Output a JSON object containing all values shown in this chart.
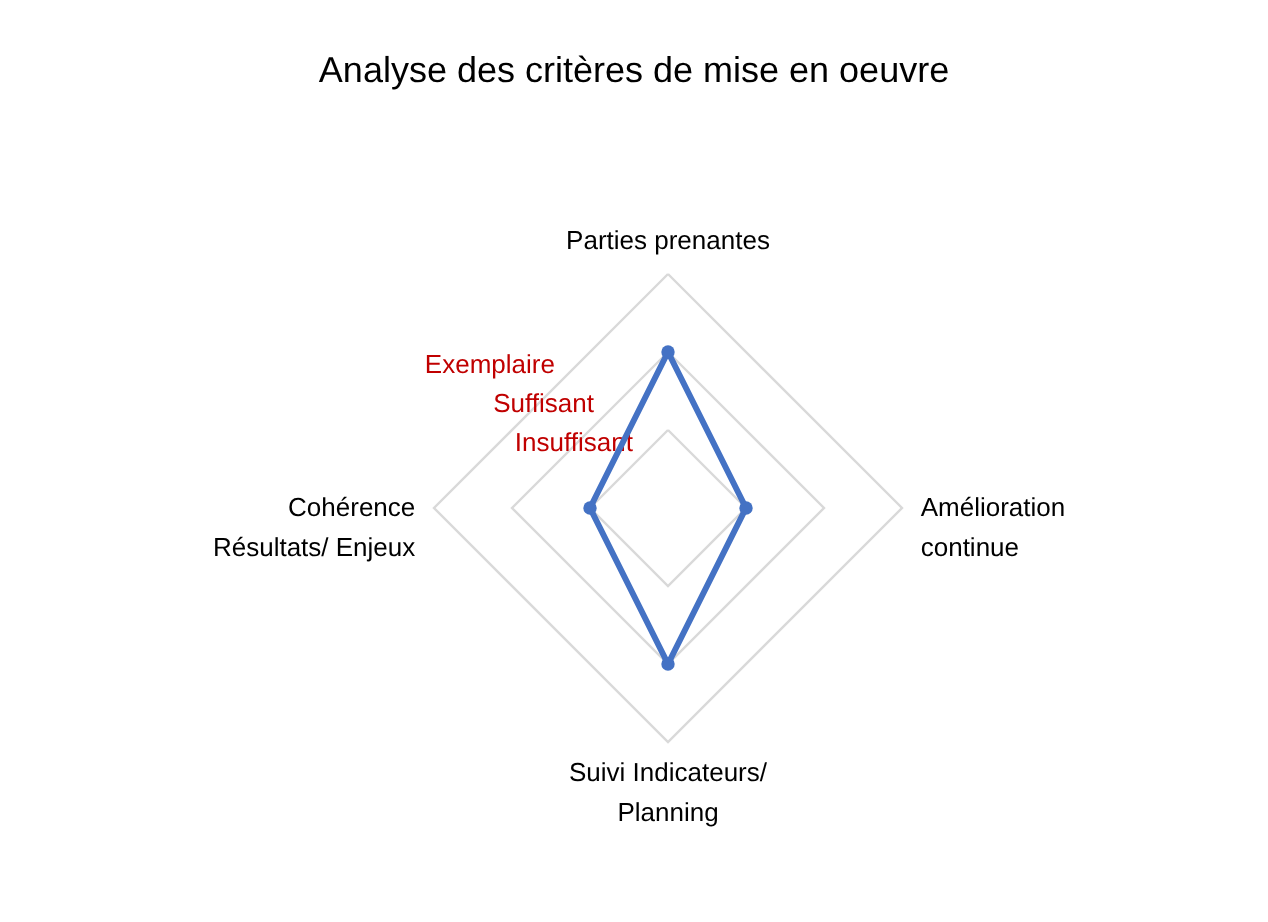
{
  "chart_data": {
    "type": "radar",
    "title": "Analyse des critères de mise en oeuvre",
    "categories": [
      "Parties prenantes",
      "Amélioration\ncontinue",
      "Suivi Indicateurs/\nPlanning",
      "Cohérence\nRésultats/ Enjeux"
    ],
    "series": [
      {
        "color": "#4472c4",
        "values": [
          2,
          1,
          2,
          1
        ]
      }
    ],
    "ylim": [
      0,
      3
    ],
    "yticks": [
      {
        "value": 1,
        "label": "Insuffisant"
      },
      {
        "value": 2,
        "label": "Suffisant"
      },
      {
        "value": 3,
        "label": "Exemplaire"
      }
    ],
    "marker": "circle",
    "line_style": "solid"
  }
}
